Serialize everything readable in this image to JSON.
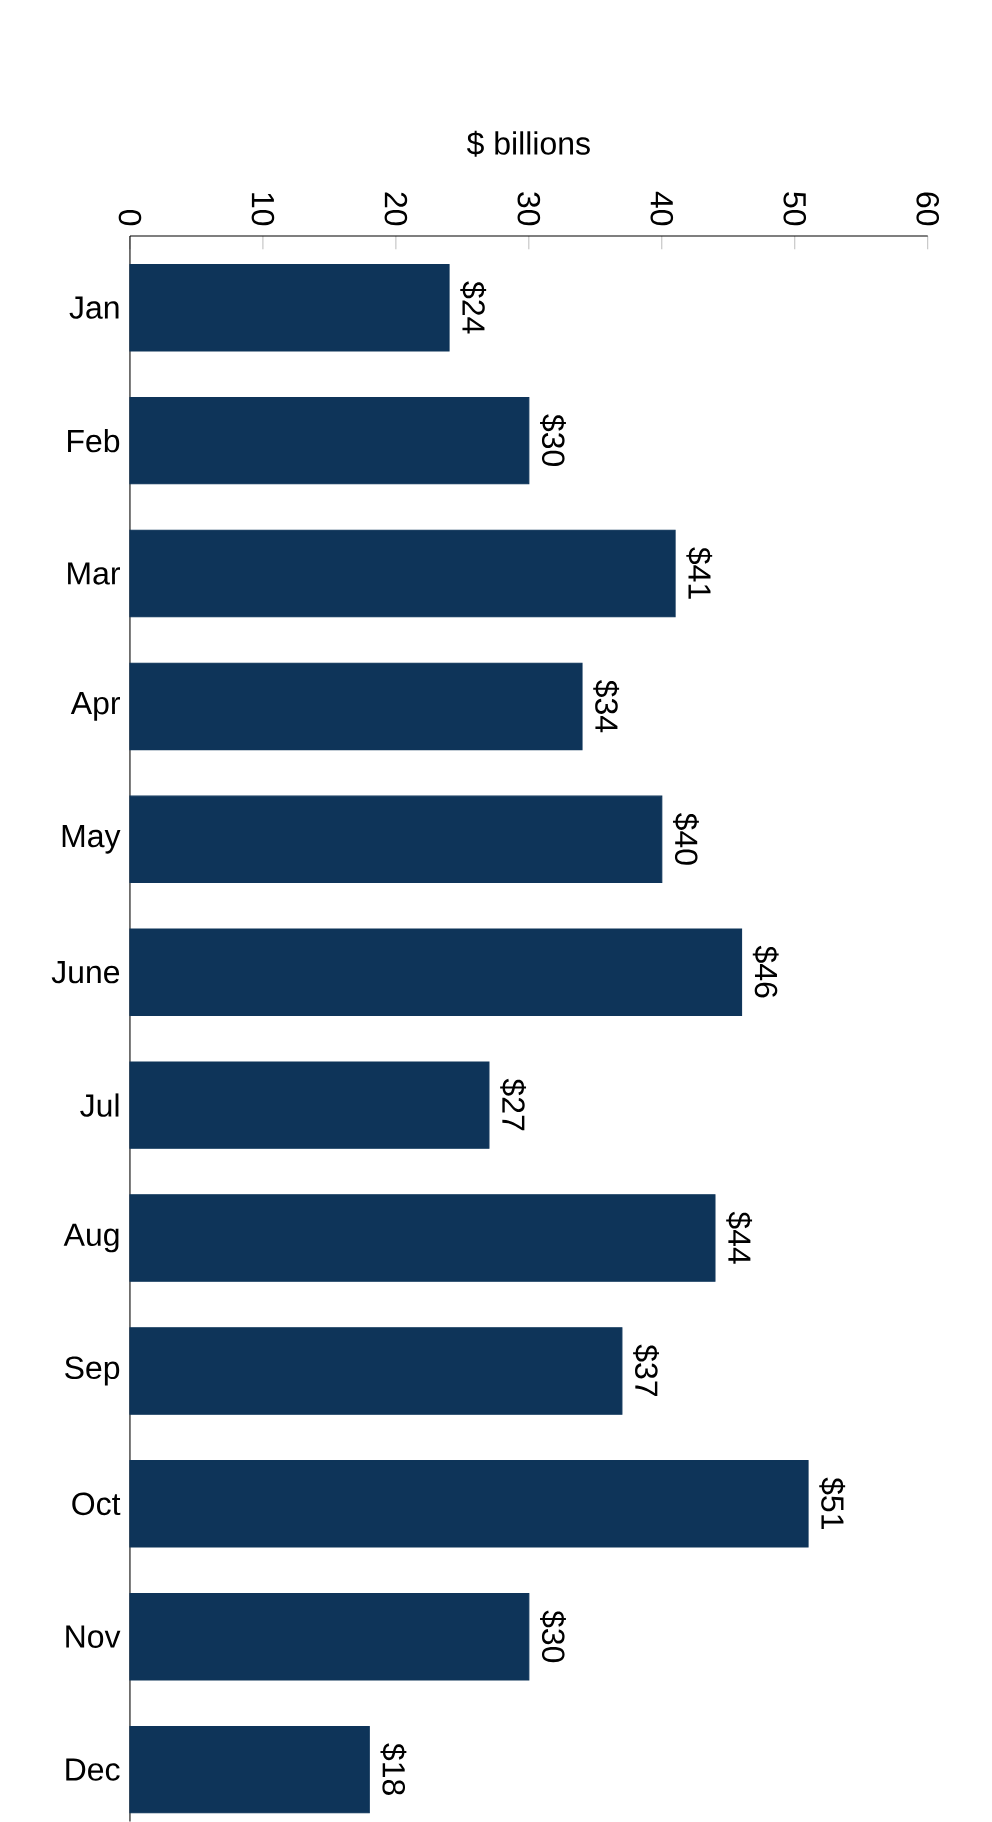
{
  "chart_data": {
    "type": "bar",
    "orientation": "horizontal",
    "xlabel": "$ billions",
    "categories": [
      "Jan",
      "Feb",
      "Mar",
      "Apr",
      "May",
      "June",
      "Jul",
      "Aug",
      "Sep",
      "Oct",
      "Nov",
      "Dec"
    ],
    "values": [
      24,
      30,
      41,
      34,
      40,
      46,
      27,
      44,
      37,
      51,
      30,
      18
    ],
    "value_labels": [
      "$24",
      "$30",
      "$41",
      "$34",
      "$40",
      "$46",
      "$27",
      "$44",
      "$37",
      "$51",
      "$30",
      "$18"
    ],
    "color": "#0e3459",
    "xlim": [
      0,
      60
    ],
    "xticks": [
      0,
      10,
      20,
      30,
      40,
      50,
      60
    ]
  }
}
